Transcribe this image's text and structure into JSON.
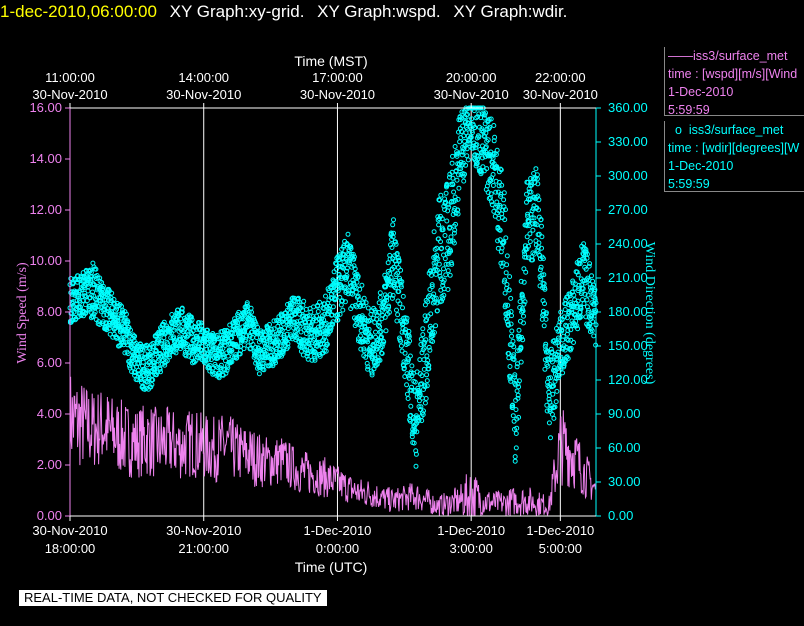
{
  "header": {
    "datetime": "1-dec-2010,06:00:00",
    "graphs": [
      "XY Graph:xy-grid.",
      "XY Graph:wspd.",
      "XY Graph:wdir."
    ]
  },
  "legend": {
    "wspd": {
      "name": "iss3/surface_met",
      "line2": "time : [wspd][m/s][Wind",
      "date": "1-Dec-2010",
      "time": "5:59:59"
    },
    "wdir": {
      "name": "iss3/surface_met",
      "line2": "time : [wdir][degrees][W",
      "date": "1-Dec-2010",
      "time": "5:59:59"
    }
  },
  "notice": "REAL-TIME DATA, NOT CHECKED FOR QUALITY",
  "colors": {
    "wspd": "#ee82ee",
    "wdir": "#00ffff",
    "grid": "#ffffff",
    "background": "#000000"
  },
  "chart_data": {
    "type": "line",
    "x_unit": "hours (UTC) from 30-Nov-2010 18:00",
    "xlim": [
      0,
      11.8
    ],
    "bottom_axis": {
      "label": "Time (UTC)",
      "ticks": [
        {
          "x": 0,
          "date": "30-Nov-2010",
          "time": "18:00:00"
        },
        {
          "x": 3,
          "date": "30-Nov-2010",
          "time": "21:00:00"
        },
        {
          "x": 6,
          "date": "1-Dec-2010",
          "time": "0:00:00"
        },
        {
          "x": 9,
          "date": "1-Dec-2010",
          "time": "3:00:00"
        },
        {
          "x": 11,
          "date": "1-Dec-2010",
          "time": "5:00:00"
        }
      ]
    },
    "top_axis": {
      "label": "Time (MST)",
      "ticks": [
        {
          "x": 0,
          "time": "11:00:00",
          "date": "30-Nov-2010"
        },
        {
          "x": 3,
          "time": "14:00:00",
          "date": "30-Nov-2010"
        },
        {
          "x": 6,
          "time": "17:00:00",
          "date": "30-Nov-2010"
        },
        {
          "x": 9,
          "time": "20:00:00",
          "date": "30-Nov-2010"
        },
        {
          "x": 11,
          "time": "22:00:00",
          "date": "30-Nov-2010"
        }
      ]
    },
    "left_axis": {
      "label": "Wind Speed (m/s)",
      "ylim": [
        0,
        16
      ],
      "ticks": [
        "0.00",
        "2.00",
        "4.00",
        "6.00",
        "8.00",
        "10.00",
        "12.00",
        "14.00",
        "16.00"
      ]
    },
    "right_axis": {
      "label": "Wind Direction (degrees)",
      "ylim": [
        0,
        360
      ],
      "ticks": [
        "0.00",
        "30.00",
        "60.00",
        "90.00",
        "120.00",
        "150.00",
        "180.00",
        "210.00",
        "240.00",
        "270.00",
        "300.00",
        "330.00",
        "360.00"
      ]
    },
    "grid": "vertical at major ticks",
    "series": [
      {
        "key": "wspd",
        "axis": "left",
        "style": "line",
        "x": [
          0,
          0.25,
          0.5,
          0.75,
          1,
          1.25,
          1.5,
          1.75,
          2,
          2.25,
          2.5,
          2.75,
          3,
          3.25,
          3.5,
          3.75,
          4,
          4.25,
          4.5,
          4.75,
          5,
          5.25,
          5.5,
          5.75,
          6,
          6.25,
          6.5,
          6.75,
          7,
          7.25,
          7.5,
          7.75,
          8,
          8.25,
          8.5,
          8.75,
          9,
          9.25,
          9.5,
          9.75,
          10,
          10.25,
          10.5,
          10.75,
          11,
          11.25,
          11.5,
          11.8
        ],
        "values": [
          3.8,
          3.6,
          3.4,
          3.5,
          3.2,
          3.0,
          2.9,
          3.0,
          2.8,
          2.9,
          2.7,
          2.9,
          2.7,
          2.6,
          2.8,
          2.5,
          2.4,
          2.2,
          2.1,
          2.2,
          1.9,
          1.7,
          1.6,
          1.5,
          1.3,
          1.1,
          0.9,
          0.9,
          0.7,
          0.6,
          0.7,
          0.8,
          0.6,
          0.4,
          0.5,
          0.6,
          0.8,
          0.6,
          0.5,
          0.5,
          0.6,
          0.6,
          0.5,
          0.4,
          2.8,
          2.5,
          1.8,
          1.0
        ],
        "spread": [
          2.0,
          1.8,
          1.6,
          1.6,
          1.5,
          1.5,
          1.4,
          1.5,
          1.4,
          1.4,
          1.3,
          1.4,
          1.3,
          1.3,
          1.3,
          1.2,
          1.2,
          1.1,
          1.0,
          1.0,
          0.9,
          0.9,
          0.8,
          0.8,
          0.7,
          0.6,
          0.6,
          0.6,
          0.5,
          0.5,
          0.5,
          0.6,
          0.5,
          0.4,
          0.5,
          0.6,
          1.2,
          0.6,
          0.5,
          0.5,
          0.6,
          0.6,
          0.5,
          0.4,
          1.6,
          1.4,
          1.0,
          0.6
        ]
      },
      {
        "key": "wdir",
        "axis": "right",
        "style": "scatter",
        "x": [
          0,
          0.25,
          0.5,
          0.75,
          1,
          1.25,
          1.5,
          1.75,
          2,
          2.25,
          2.5,
          2.75,
          3,
          3.25,
          3.5,
          3.75,
          4,
          4.25,
          4.5,
          4.75,
          5,
          5.25,
          5.5,
          5.75,
          6,
          6.25,
          6.5,
          6.75,
          7,
          7.25,
          7.5,
          7.75,
          8,
          8.25,
          8.5,
          8.75,
          9,
          9.25,
          9.5,
          9.75,
          10,
          10.25,
          10.5,
          10.75,
          11,
          11.25,
          11.5,
          11.8
        ],
        "values": [
          190,
          195,
          200,
          185,
          175,
          160,
          135,
          130,
          145,
          160,
          165,
          155,
          150,
          140,
          145,
          160,
          170,
          145,
          150,
          160,
          175,
          165,
          160,
          170,
          200,
          220,
          180,
          150,
          170,
          230,
          160,
          80,
          150,
          230,
          250,
          320,
          350,
          330,
          310,
          240,
          80,
          260,
          270,
          100,
          150,
          175,
          210,
          180
        ],
        "spread": [
          20,
          20,
          25,
          20,
          20,
          20,
          20,
          20,
          20,
          20,
          20,
          20,
          20,
          20,
          20,
          20,
          20,
          20,
          20,
          20,
          20,
          25,
          25,
          25,
          30,
          30,
          30,
          30,
          30,
          35,
          35,
          40,
          45,
          50,
          50,
          40,
          30,
          35,
          40,
          50,
          40,
          40,
          40,
          40,
          30,
          30,
          35,
          30
        ]
      }
    ]
  }
}
